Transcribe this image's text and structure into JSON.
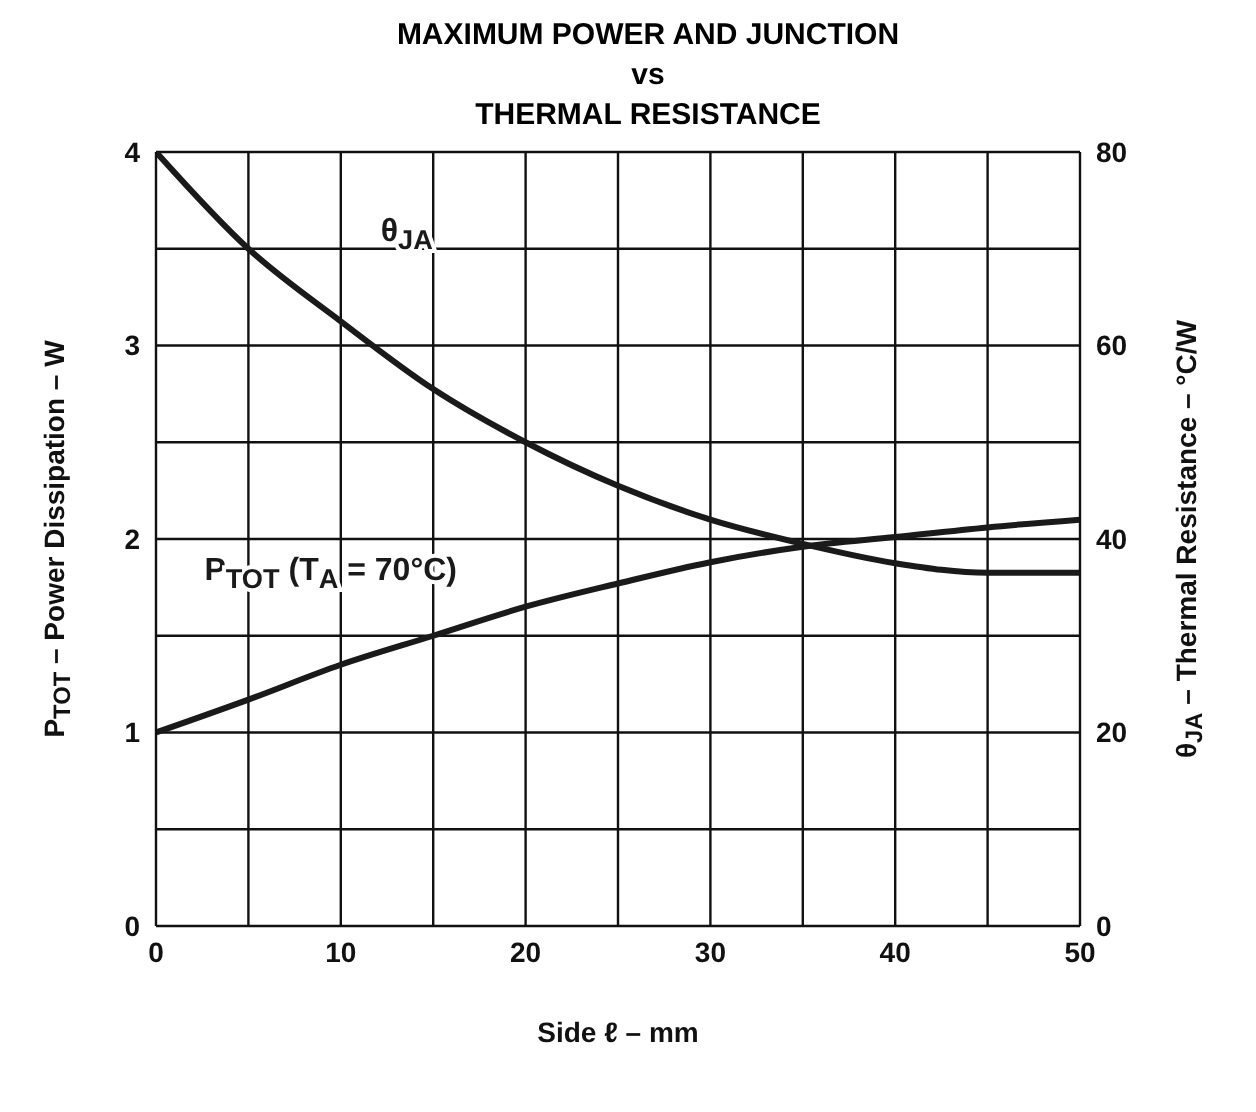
{
  "chart_data": {
    "type": "line",
    "title": "MAXIMUM POWER AND JUNCTION\nvs\nTHERMAL RESISTANCE",
    "xlabel": "Side ℓ – mm",
    "ylabel": "P$_{TOT}$ – Power Dissipation – W",
    "y2label": "θ$_{JA}$ – Thermal Resistance – °C/W",
    "x": [
      0,
      5,
      10,
      15,
      20,
      25,
      30,
      35,
      40,
      45,
      50
    ],
    "series": [
      {
        "name": "P$_{TOT}$ (T$_{A}$ = 70°C)",
        "color": "#1a1a1a",
        "values": [
          1,
          1.17,
          1.35,
          1.5,
          1.65,
          1.77,
          1.88,
          1.96,
          2.01,
          2.06,
          2.1
        ]
      },
      {
        "name": "θ$_{JA}$",
        "color": "#1a1a1a",
        "axis": "y2",
        "values": [
          80,
          70,
          62.5,
          55.5,
          50,
          45.5,
          42,
          39.5,
          37.5,
          36.5,
          36.5
        ]
      }
    ],
    "xlim": [
      0,
      50
    ],
    "xticks": [
      0,
      {
        "value": 5,
        "label": null
      },
      10,
      {
        "value": 15,
        "label": null
      },
      20,
      {
        "value": 25,
        "label": null
      },
      30,
      {
        "value": 35,
        "label": null
      },
      40,
      {
        "value": 45,
        "label": null
      },
      50
    ],
    "ylim": [
      0,
      4
    ],
    "yticks": [
      0,
      {
        "value": 0.5,
        "label": null
      },
      1,
      {
        "value": 1.5,
        "label": null
      },
      2,
      {
        "value": 2.5,
        "label": null
      },
      3,
      {
        "value": 3.5,
        "label": null
      },
      4
    ],
    "y2lim": [
      0,
      80
    ],
    "y2ticks": [
      0,
      20,
      40,
      60,
      80
    ],
    "grid": true,
    "marker": "none",
    "line_style": "solid"
  }
}
